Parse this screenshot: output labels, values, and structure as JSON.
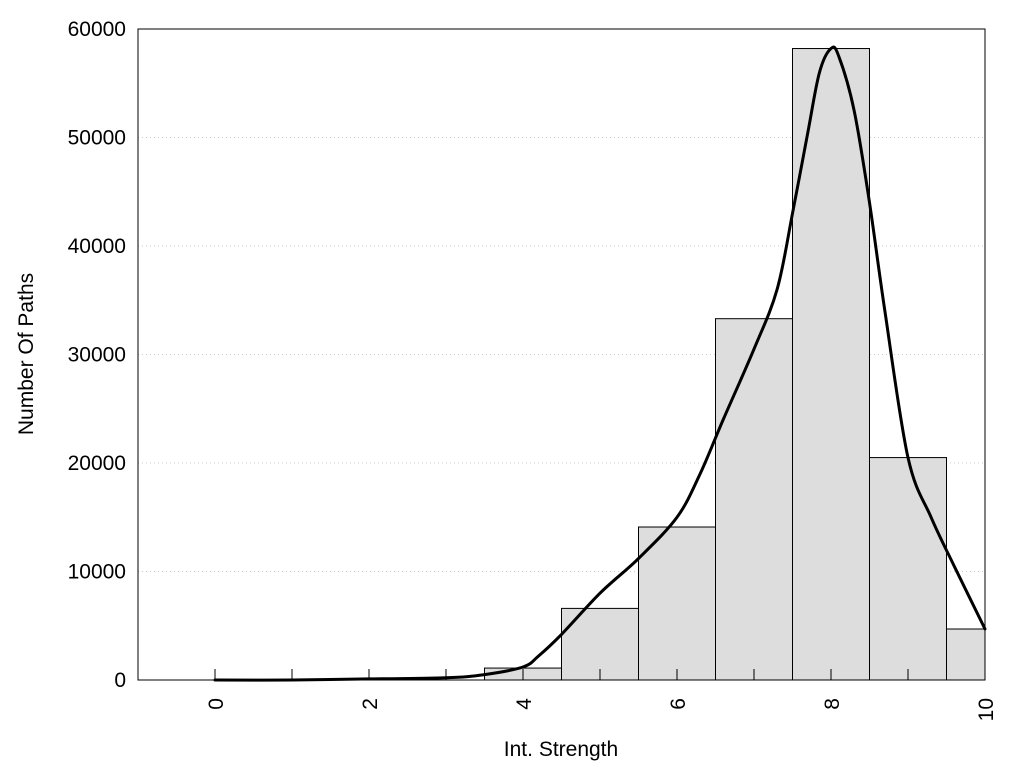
{
  "chart_data": {
    "type": "bar",
    "title": "",
    "xlabel": "Int. Strength",
    "ylabel": "Number Of Paths",
    "xlim": [
      -1,
      10
    ],
    "ylim": [
      0,
      60000
    ],
    "x_ticks": [
      "0",
      "2",
      "4",
      "6",
      "8",
      "10"
    ],
    "y_ticks": [
      "0",
      "10000",
      "20000",
      "30000",
      "40000",
      "50000",
      "60000"
    ],
    "grid": "horizontal-dotted",
    "legend": "none",
    "bins": [
      {
        "x": 0,
        "value": 0
      },
      {
        "x": 1,
        "value": 0
      },
      {
        "x": 2,
        "value": 0
      },
      {
        "x": 3,
        "value": 0
      },
      {
        "x": 4,
        "value": 1100
      },
      {
        "x": 5,
        "value": 6600
      },
      {
        "x": 6,
        "value": 14100
      },
      {
        "x": 7,
        "value": 33300
      },
      {
        "x": 8,
        "value": 58200
      },
      {
        "x": 9,
        "value": 20500
      },
      {
        "x": 10,
        "value": 4700
      }
    ],
    "density_curve": {
      "x": [
        0,
        1,
        2,
        3,
        3.5,
        4,
        4.2,
        4.5,
        5,
        5.5,
        6,
        6.3,
        6.6,
        7,
        7.3,
        7.5,
        7.7,
        7.85,
        8,
        8.1,
        8.3,
        8.5,
        8.7,
        9,
        9.3,
        9.6,
        10
      ],
      "y": [
        0,
        0,
        100,
        200,
        500,
        1200,
        2200,
        4200,
        8000,
        11200,
        15000,
        19000,
        24000,
        30500,
        36000,
        43000,
        50500,
        56000,
        58200,
        57500,
        52500,
        44000,
        34000,
        20500,
        15000,
        10500,
        4700
      ]
    },
    "colors": {
      "bar_fill": "#dddddd",
      "bar_stroke": "#000000",
      "curve": "#000000",
      "grid": "#cccccc"
    }
  }
}
